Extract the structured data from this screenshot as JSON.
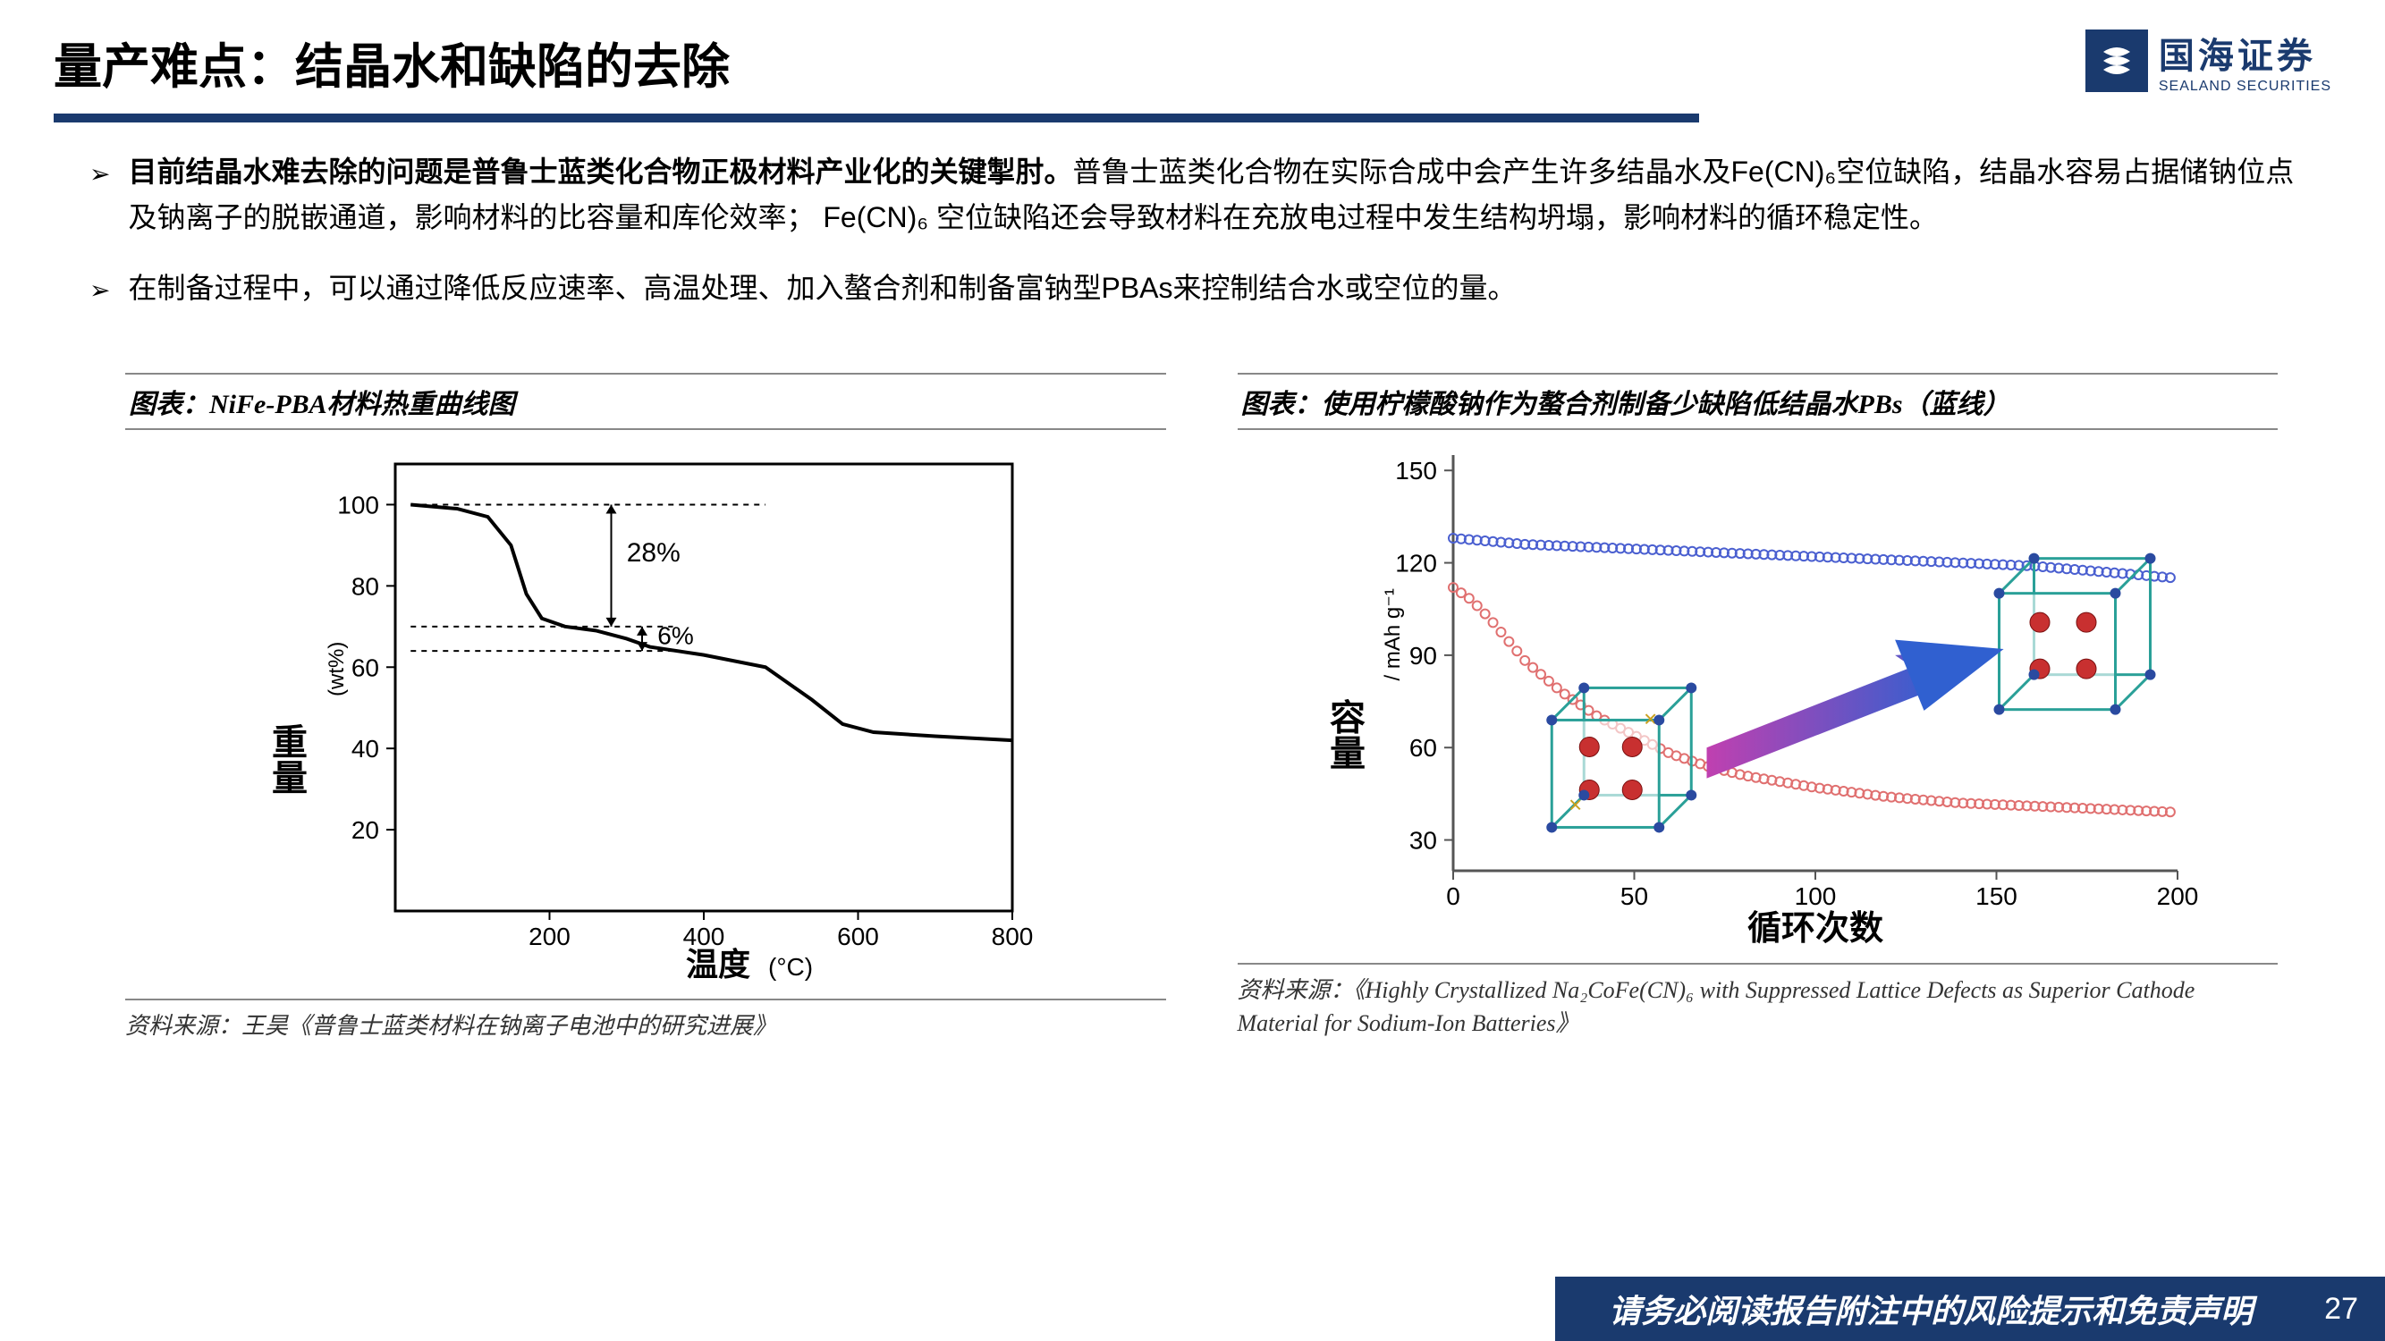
{
  "header": {
    "title": "量产难点：结晶水和缺陷的去除",
    "logo_cn": "国海证券",
    "logo_en": "SEALAND SECURITIES"
  },
  "bullets": [
    {
      "bold": "目前结晶水难去除的问题是普鲁士蓝类化合物正极材料产业化的关键掣肘。",
      "rest": "普鲁士蓝类化合物在实际合成中会产生许多结晶水及Fe(CN)₆空位缺陷，结晶水容易占据储钠位点及钠离子的脱嵌通道，影响材料的比容量和库伦效率； Fe(CN)₆ 空位缺陷还会导致材料在充放电过程中发生结构坍塌，影响材料的循环稳定性。"
    },
    {
      "bold": "",
      "rest": "在制备过程中，可以通过降低反应速率、高温处理、加入螯合剂和制备富钠型PBAs来控制结合水或空位的量。"
    }
  ],
  "chart_left": {
    "title": "图表：NiFe-PBA材料热重曲线图",
    "ylabel": "重量",
    "yunit": "(wt%)",
    "xlabel": "温度",
    "xunit": "(°C)",
    "xticks": [
      200,
      400,
      600,
      800
    ],
    "yticks": [
      20,
      40,
      60,
      80,
      100
    ],
    "xlim": [
      0,
      800
    ],
    "ylim": [
      0,
      110
    ],
    "annotations": {
      "drop1": "28%",
      "drop2": "6%"
    },
    "curve": [
      [
        20,
        100
      ],
      [
        80,
        99
      ],
      [
        120,
        97
      ],
      [
        150,
        90
      ],
      [
        170,
        78
      ],
      [
        190,
        72
      ],
      [
        220,
        70
      ],
      [
        260,
        69
      ],
      [
        300,
        67
      ],
      [
        330,
        65
      ],
      [
        400,
        63
      ],
      [
        480,
        60
      ],
      [
        540,
        52
      ],
      [
        580,
        46
      ],
      [
        620,
        44
      ],
      [
        700,
        43
      ],
      [
        800,
        42
      ]
    ],
    "colors": {
      "line": "#000000",
      "bg": "#ffffff"
    },
    "source": "资料来源：王昊《普鲁士蓝类材料在钠离子电池中的研究进展》"
  },
  "chart_right": {
    "title": "图表：使用柠檬酸钠作为螯合剂制备少缺陷低结晶水PBs（蓝线）",
    "ylabel": "容量",
    "yunit": "/ mAh g⁻¹",
    "xlabel": "循环次数",
    "xticks": [
      0,
      50,
      100,
      150,
      200
    ],
    "yticks": [
      30,
      60,
      90,
      120,
      150
    ],
    "xlim": [
      0,
      200
    ],
    "ylim": [
      20,
      155
    ],
    "series": {
      "blue": {
        "color": "#4a5fd0",
        "points": [
          [
            0,
            128
          ],
          [
            10,
            127
          ],
          [
            20,
            126
          ],
          [
            40,
            125
          ],
          [
            60,
            124
          ],
          [
            80,
            123
          ],
          [
            100,
            122
          ],
          [
            120,
            121
          ],
          [
            140,
            120
          ],
          [
            160,
            119
          ],
          [
            180,
            117
          ],
          [
            200,
            115
          ]
        ]
      },
      "red": {
        "color": "#e07070",
        "points": [
          [
            0,
            112
          ],
          [
            5,
            108
          ],
          [
            10,
            102
          ],
          [
            15,
            95
          ],
          [
            20,
            88
          ],
          [
            30,
            78
          ],
          [
            40,
            70
          ],
          [
            50,
            64
          ],
          [
            60,
            58
          ],
          [
            70,
            54
          ],
          [
            80,
            51
          ],
          [
            100,
            47
          ],
          [
            120,
            44
          ],
          [
            140,
            42
          ],
          [
            160,
            41
          ],
          [
            180,
            40
          ],
          [
            200,
            39
          ]
        ]
      }
    },
    "colors": {
      "bg": "#ffffff",
      "axis": "#555"
    },
    "source": "资料来源：《Highly Crystallized Na₂CoFe(CN)₆ with Suppressed Lattice Defects as Superior Cathode Material for Sodium-Ion Batteries》"
  },
  "footer": {
    "text": "请务必阅读报告附注中的风险提示和免责声明",
    "page": "27"
  }
}
